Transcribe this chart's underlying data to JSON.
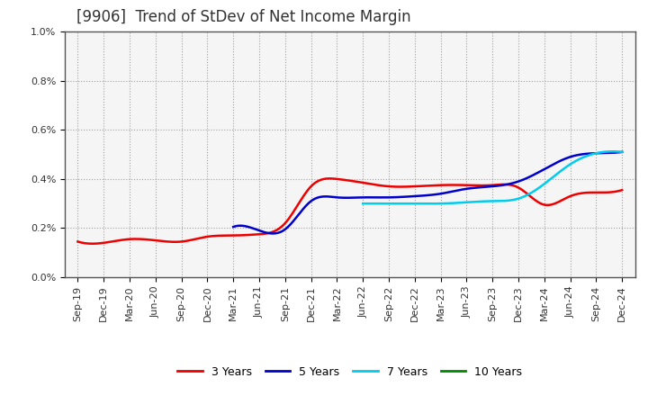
{
  "title": "[9906]  Trend of StDev of Net Income Margin",
  "x_labels": [
    "Sep-19",
    "Dec-19",
    "Mar-20",
    "Jun-20",
    "Sep-20",
    "Dec-20",
    "Mar-21",
    "Jun-21",
    "Sep-21",
    "Dec-21",
    "Mar-22",
    "Jun-22",
    "Sep-22",
    "Dec-22",
    "Mar-23",
    "Jun-23",
    "Sep-23",
    "Dec-23",
    "Mar-24",
    "Jun-24",
    "Sep-24",
    "Dec-24"
  ],
  "ylim": [
    0.0,
    0.01
  ],
  "yticks": [
    0.0,
    0.002,
    0.004,
    0.006,
    0.008,
    0.01
  ],
  "ytick_labels": [
    "0.0%",
    "0.2%",
    "0.4%",
    "0.6%",
    "0.8%",
    "1.0%"
  ],
  "series": {
    "3 Years": {
      "color": "#ee0000",
      "linewidth": 1.8,
      "data": [
        0.00145,
        0.0014,
        0.00155,
        0.0015,
        0.00145,
        0.00165,
        0.0017,
        0.00175,
        0.0022,
        0.0037,
        0.004,
        0.00385,
        0.0037,
        0.0037,
        0.00375,
        0.00375,
        0.00375,
        0.00365,
        0.00295,
        0.0033,
        0.00345,
        0.00355
      ]
    },
    "5 Years": {
      "color": "#0000cc",
      "linewidth": 1.8,
      "data": [
        null,
        null,
        null,
        null,
        null,
        null,
        0.00205,
        0.0019,
        0.00195,
        0.0031,
        0.00325,
        0.00325,
        0.00325,
        0.0033,
        0.0034,
        0.0036,
        0.0037,
        0.0039,
        0.0044,
        0.0049,
        0.00505,
        0.0051
      ]
    },
    "7 Years": {
      "color": "#00ccee",
      "linewidth": 1.8,
      "data": [
        null,
        null,
        null,
        null,
        null,
        null,
        null,
        null,
        null,
        null,
        null,
        0.003,
        0.003,
        0.003,
        0.003,
        0.00305,
        0.0031,
        0.0032,
        0.0038,
        0.0046,
        0.00505,
        0.0051
      ]
    },
    "10 Years": {
      "color": "#008800",
      "linewidth": 1.8,
      "data": [
        null,
        null,
        null,
        null,
        null,
        null,
        null,
        null,
        null,
        null,
        null,
        null,
        null,
        null,
        null,
        null,
        null,
        null,
        null,
        null,
        null,
        null
      ]
    }
  },
  "background_color": "#ffffff",
  "plot_bg_color": "#f5f5f5",
  "grid_color": "#999999",
  "title_fontsize": 12,
  "tick_fontsize": 8,
  "title_color": "#333333"
}
